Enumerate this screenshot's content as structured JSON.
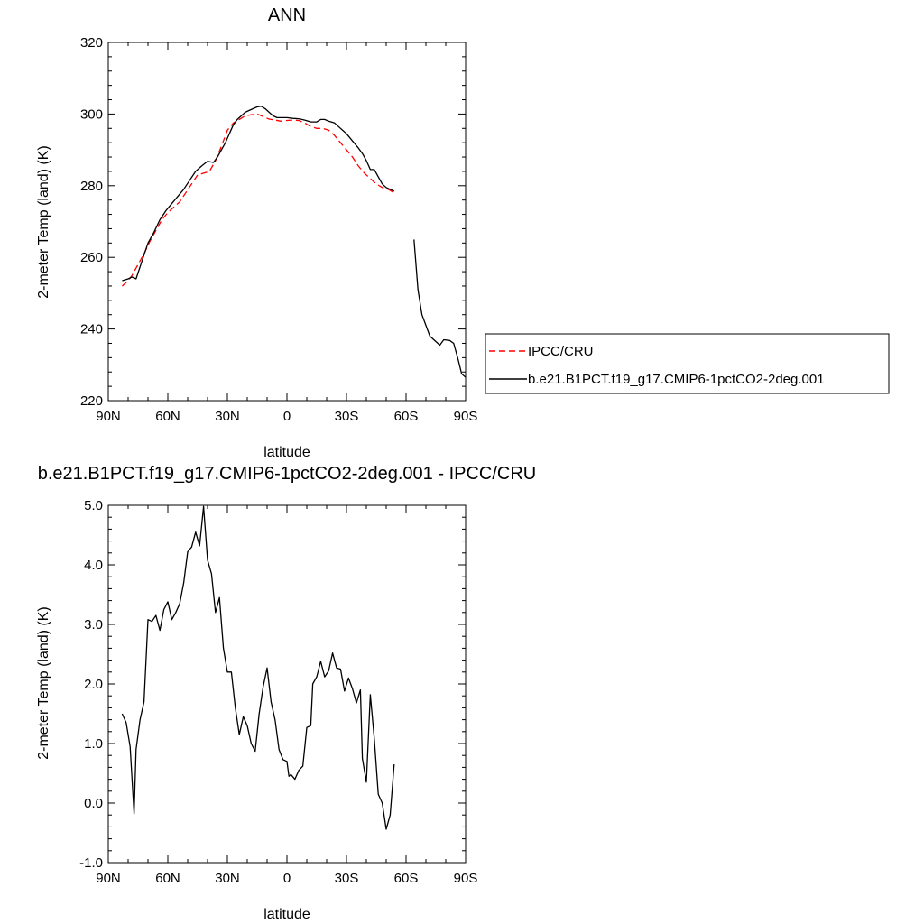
{
  "chart_data": [
    {
      "type": "line",
      "title": "ANN",
      "xlabel": "latitude",
      "ylabel": "2-meter Temp (land) (K)",
      "xlim": [
        90,
        -90
      ],
      "ylim": [
        220,
        320
      ],
      "x_ticks": [
        90,
        60,
        30,
        0,
        -30,
        -60,
        -90
      ],
      "x_tick_labels": [
        "90N",
        "60N",
        "30N",
        "0",
        "30S",
        "60S",
        "90S"
      ],
      "y_ticks": [
        220,
        240,
        260,
        280,
        300,
        320
      ],
      "y_tick_labels": [
        "220",
        "240",
        "260",
        "280",
        "300",
        "320"
      ],
      "grid": false,
      "legend_position": "right",
      "series": [
        {
          "name": "IPCC/CRU",
          "color": "#ff0000",
          "dash": "dashed",
          "points": [
            [
              83,
              252
            ],
            [
              80,
              253.5
            ],
            [
              78,
              255
            ],
            [
              75,
              258
            ],
            [
              72,
              261
            ],
            [
              69,
              264.5
            ],
            [
              66,
              267.5
            ],
            [
              63,
              270.5
            ],
            [
              60,
              272.5
            ],
            [
              57,
              274
            ],
            [
              54,
              275.5
            ],
            [
              51,
              278
            ],
            [
              48,
              280.5
            ],
            [
              45,
              283
            ],
            [
              42,
              283.5
            ],
            [
              39,
              284
            ],
            [
              36,
              287
            ],
            [
              33,
              291
            ],
            [
              30,
              295.5
            ],
            [
              27,
              297.5
            ],
            [
              24,
              298.5
            ],
            [
              21,
              299.5
            ],
            [
              18,
              299.8
            ],
            [
              15,
              300
            ],
            [
              12,
              299.3
            ],
            [
              9,
              298.6
            ],
            [
              6,
              298.3
            ],
            [
              3,
              298
            ],
            [
              0,
              298.2
            ],
            [
              -3,
              298.3
            ],
            [
              -6,
              298.2
            ],
            [
              -9,
              297.5
            ],
            [
              -12,
              296.5
            ],
            [
              -15,
              296
            ],
            [
              -18,
              296
            ],
            [
              -21,
              295.5
            ],
            [
              -24,
              294
            ],
            [
              -27,
              292
            ],
            [
              -30,
              290
            ],
            [
              -33,
              288
            ],
            [
              -36,
              285.5
            ],
            [
              -39,
              283.5
            ],
            [
              -42,
              282
            ],
            [
              -45,
              280.5
            ],
            [
              -48,
              279.5
            ],
            [
              -51,
              279
            ],
            [
              -54,
              278
            ]
          ]
        },
        {
          "name": "b.e21.B1PCT.f19_g17.CMIP6-1pctCO2-2deg.001",
          "color": "#000000",
          "dash": "solid",
          "segments": [
            [
              [
                83,
                253.5
              ],
              [
                80,
                254
              ],
              [
                78,
                254.5
              ],
              [
                76,
                254
              ],
              [
                73,
                259
              ],
              [
                70,
                264
              ],
              [
                67,
                267
              ],
              [
                64,
                270.5
              ],
              [
                61,
                273
              ],
              [
                58,
                275
              ],
              [
                55,
                277
              ],
              [
                52,
                279
              ],
              [
                49,
                281.5
              ],
              [
                46,
                284
              ],
              [
                43,
                285.5
              ],
              [
                40,
                286.8
              ],
              [
                37,
                286.5
              ],
              [
                35,
                288
              ],
              [
                33,
                290
              ],
              [
                31,
                292
              ],
              [
                29,
                294.5
              ],
              [
                27,
                297
              ],
              [
                25,
                298.5
              ],
              [
                23,
                299.5
              ],
              [
                21,
                300.5
              ],
              [
                19,
                301
              ],
              [
                17,
                301.5
              ],
              [
                15,
                302
              ],
              [
                13,
                302.2
              ],
              [
                11,
                301.5
              ],
              [
                9,
                300.5
              ],
              [
                7,
                299.5
              ],
              [
                5,
                299
              ],
              [
                3,
                299
              ],
              [
                0,
                299
              ],
              [
                -3,
                298.8
              ],
              [
                -6,
                298.7
              ],
              [
                -9,
                298.3
              ],
              [
                -12,
                297.8
              ],
              [
                -15,
                297.8
              ],
              [
                -17,
                298.5
              ],
              [
                -19,
                298.5
              ],
              [
                -21,
                298
              ],
              [
                -24,
                297.5
              ],
              [
                -27,
                296
              ],
              [
                -30,
                294.5
              ],
              [
                -33,
                292.5
              ],
              [
                -36,
                290.5
              ],
              [
                -38,
                289
              ],
              [
                -40,
                287
              ],
              [
                -42,
                284.5
              ],
              [
                -44,
                284.5
              ],
              [
                -46,
                282.5
              ],
              [
                -48,
                280.5
              ],
              [
                -50,
                279.5
              ],
              [
                -52,
                279
              ],
              [
                -54,
                278.5
              ]
            ],
            [
              [
                -64,
                265
              ],
              [
                -66,
                251
              ],
              [
                -68,
                244
              ],
              [
                -70,
                241
              ],
              [
                -72,
                238
              ],
              [
                -75,
                236.5
              ],
              [
                -77,
                235.5
              ],
              [
                -79,
                237
              ],
              [
                -82,
                236.8
              ],
              [
                -84,
                236
              ],
              [
                -86,
                232
              ],
              [
                -88,
                227.5
              ],
              [
                -90,
                226.5
              ]
            ]
          ]
        }
      ]
    },
    {
      "type": "line",
      "title": "b.e21.B1PCT.f19_g17.CMIP6-1pctCO2-2deg.001 - IPCC/CRU",
      "xlabel": "latitude",
      "ylabel": "2-meter Temp (land) (K)",
      "xlim": [
        90,
        -90
      ],
      "ylim": [
        -1.0,
        5.0
      ],
      "x_ticks": [
        90,
        60,
        30,
        0,
        -30,
        -60,
        -90
      ],
      "x_tick_labels": [
        "90N",
        "60N",
        "30N",
        "0",
        "30S",
        "60S",
        "90S"
      ],
      "y_ticks": [
        -1,
        0,
        1,
        2,
        3,
        4,
        5
      ],
      "y_tick_labels": [
        "-1.0",
        "0.0",
        "1.0",
        "2.0",
        "3.0",
        "4.0",
        "5.0"
      ],
      "grid": false,
      "series": [
        {
          "color": "#000000",
          "dash": "solid",
          "points": [
            [
              83,
              1.5
            ],
            [
              81,
              1.35
            ],
            [
              79,
              0.95
            ],
            [
              77,
              -0.18
            ],
            [
              76,
              0.9
            ],
            [
              74,
              1.4
            ],
            [
              72,
              1.7
            ],
            [
              70,
              3.08
            ],
            [
              68,
              3.05
            ],
            [
              66,
              3.15
            ],
            [
              64,
              2.9
            ],
            [
              62,
              3.25
            ],
            [
              60,
              3.38
            ],
            [
              58,
              3.08
            ],
            [
              56,
              3.2
            ],
            [
              54,
              3.35
            ],
            [
              52,
              3.7
            ],
            [
              50,
              4.22
            ],
            [
              48,
              4.3
            ],
            [
              46,
              4.55
            ],
            [
              44,
              4.32
            ],
            [
              42,
              4.98
            ],
            [
              40,
              4.08
            ],
            [
              38,
              3.85
            ],
            [
              36,
              3.2
            ],
            [
              34,
              3.45
            ],
            [
              32,
              2.6
            ],
            [
              30,
              2.2
            ],
            [
              28,
              2.2
            ],
            [
              26,
              1.6
            ],
            [
              24,
              1.15
            ],
            [
              22,
              1.45
            ],
            [
              20,
              1.3
            ],
            [
              18,
              1.0
            ],
            [
              16,
              0.87
            ],
            [
              14,
              1.5
            ],
            [
              12,
              1.95
            ],
            [
              10,
              2.27
            ],
            [
              8,
              1.7
            ],
            [
              6,
              1.4
            ],
            [
              4,
              0.9
            ],
            [
              2,
              0.73
            ],
            [
              0,
              0.7
            ],
            [
              -1,
              0.45
            ],
            [
              -2,
              0.48
            ],
            [
              -4,
              0.4
            ],
            [
              -6,
              0.55
            ],
            [
              -8,
              0.62
            ],
            [
              -10,
              1.27
            ],
            [
              -12,
              1.3
            ],
            [
              -13,
              2.0
            ],
            [
              -15,
              2.12
            ],
            [
              -17,
              2.38
            ],
            [
              -19,
              2.12
            ],
            [
              -21,
              2.22
            ],
            [
              -23,
              2.52
            ],
            [
              -25,
              2.27
            ],
            [
              -27,
              2.25
            ],
            [
              -29,
              1.88
            ],
            [
              -31,
              2.1
            ],
            [
              -33,
              1.92
            ],
            [
              -35,
              1.68
            ],
            [
              -37,
              1.9
            ],
            [
              -38,
              0.75
            ],
            [
              -40,
              0.35
            ],
            [
              -42,
              1.82
            ],
            [
              -44,
              1.08
            ],
            [
              -46,
              0.15
            ],
            [
              -48,
              0.0
            ],
            [
              -50,
              -0.44
            ],
            [
              -52,
              -0.2
            ],
            [
              -54,
              0.65
            ]
          ]
        }
      ]
    }
  ]
}
